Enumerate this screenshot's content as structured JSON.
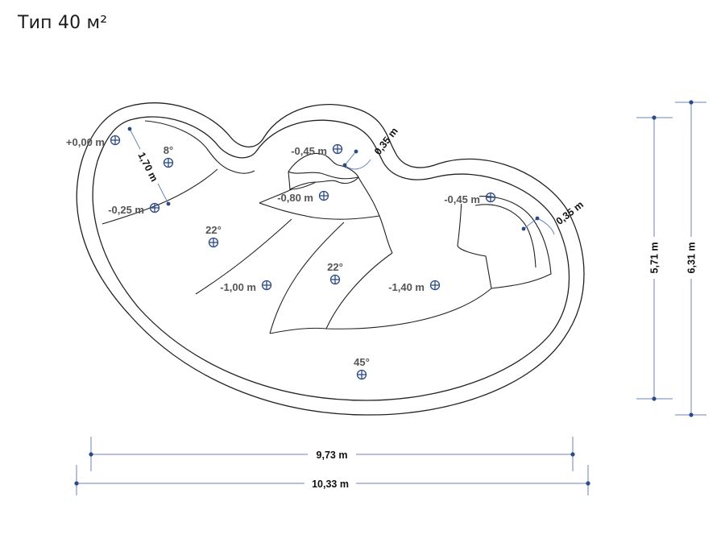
{
  "title": "Тип 40 м²",
  "markers": [
    {
      "id": "m1",
      "label": "+0,00 m"
    },
    {
      "id": "m2",
      "label": "8°"
    },
    {
      "id": "m3",
      "label": "-0,25 m"
    },
    {
      "id": "m4",
      "label": "-0,45 m"
    },
    {
      "id": "m5",
      "label": "-0,80 m"
    },
    {
      "id": "m6",
      "label": "-0,45 m"
    },
    {
      "id": "m7",
      "label": "22°"
    },
    {
      "id": "m8",
      "label": "-1,00 m"
    },
    {
      "id": "m9",
      "label": "22°"
    },
    {
      "id": "m10",
      "label": "-1,40 m"
    },
    {
      "id": "m11",
      "label": "45°"
    }
  ],
  "dimensions": {
    "step_length": "1,70 m",
    "step_width_top": "0,35 m",
    "step_width_right": "0,35 m",
    "inner_length": "9,73 m",
    "outer_length": "10,33 m",
    "inner_width": "5,71 m",
    "outer_width": "6,31 m"
  }
}
